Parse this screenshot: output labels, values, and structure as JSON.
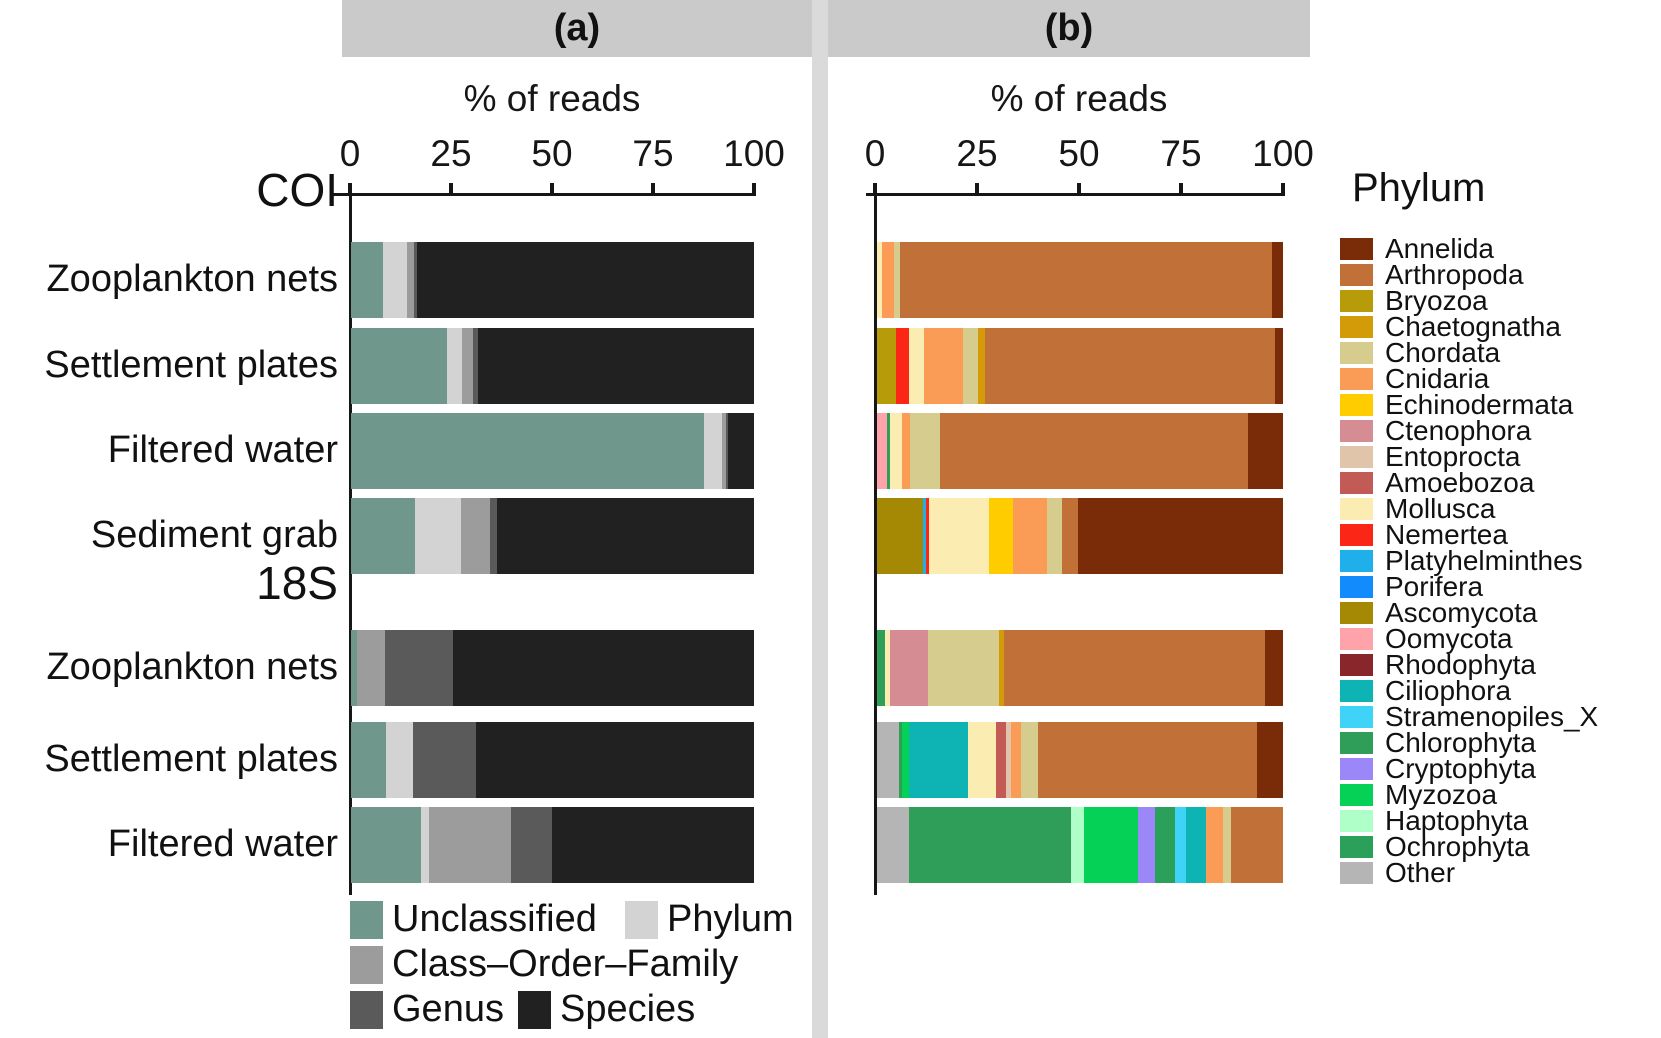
{
  "panels": {
    "a": {
      "header": "(a)",
      "axis_title": "% of reads",
      "ticks": [
        "0",
        "25",
        "50",
        "75",
        "100"
      ]
    },
    "b": {
      "header": "(b)",
      "axis_title": "% of reads",
      "ticks": [
        "0",
        "25",
        "50",
        "75",
        "100"
      ]
    }
  },
  "group_labels": {
    "coi": "COI",
    "s18": "18S"
  },
  "row_labels": [
    "Zooplankton nets",
    "Settlement plates",
    "Filtered water",
    "Sediment grab",
    "Zooplankton nets",
    "Settlement plates",
    "Filtered water"
  ],
  "legend_a": {
    "items": [
      {
        "label": "Unclassified",
        "key": "Unclassified"
      },
      {
        "label": "Phylum",
        "key": "Phylum"
      },
      {
        "label": "Class–Order–Family",
        "key": "Class-Order-Family"
      },
      {
        "label": "Genus",
        "key": "Genus"
      },
      {
        "label": "Species",
        "key": "Species"
      }
    ]
  },
  "legend_b": {
    "title": "Phylum",
    "items": [
      "Annelida",
      "Arthropoda",
      "Bryozoa",
      "Chaetognatha",
      "Chordata",
      "Cnidaria",
      "Echinodermata",
      "Ctenophora",
      "Entoprocta",
      "Amoebozoa",
      "Mollusca",
      "Nemertea",
      "Platyhelminthes",
      "Porifera",
      "Ascomycota",
      "Oomycota",
      "Rhodophyta",
      "Ciliophora",
      "Stramenopiles_X",
      "Chlorophyta",
      "Cryptophyta",
      "Myzozoa",
      "Haptophyta",
      "Ochrophyta",
      "Other"
    ]
  },
  "colors": {
    "Unclassified": "#6f978c",
    "Phylum": "#d3d3d3",
    "Class-Order-Family": "#9c9c9c",
    "Genus": "#5a5a5a",
    "Species": "#212121",
    "Annelida": "#7a2b08",
    "Arthropoda": "#c17038",
    "Bryozoa": "#b89b08",
    "Chaetognatha": "#d39b07",
    "Chordata": "#d6cc8d",
    "Cnidaria": "#fa9c55",
    "Echinodermata": "#ffcc00",
    "Ctenophora": "#d68c93",
    "Entoprocta": "#e0c5ab",
    "Amoebozoa": "#c25b55",
    "Mollusca": "#fbecb2",
    "Nemertea": "#fc2616",
    "Platyhelminthes": "#1fb0ec",
    "Porifera": "#128cfc",
    "Ascomycota": "#a58905",
    "Oomycota": "#ffa3ab",
    "Rhodophyta": "#88262b",
    "Ciliophora": "#0eb4b4",
    "Stramenopiles_X": "#3fd3f7",
    "Chlorophyta": "#2e9e58",
    "Cryptophyta": "#9b87f8",
    "Myzozoa": "#04d156",
    "Haptophyta": "#afffc8",
    "Ochrophyta": "#2aa05b",
    "Other": "#b5b5b5"
  },
  "chart_data": [
    {
      "id": "a",
      "type": "bar",
      "orientation": "horizontal",
      "stacked": true,
      "title": "% of reads",
      "xlabel": "% of reads",
      "xlim": [
        0,
        100
      ],
      "xticks": [
        0,
        25,
        50,
        75,
        100
      ],
      "legend_position": "bottom",
      "series_names": [
        "Unclassified",
        "Phylum",
        "Class-Order-Family",
        "Genus",
        "Species"
      ],
      "rows": [
        {
          "group": "COI",
          "category": "Zooplankton nets",
          "segments": [
            [
              "Unclassified",
              7.9
            ],
            [
              "Phylum",
              5.9
            ],
            [
              "Class-Order-Family",
              1.9
            ],
            [
              "Genus",
              0.8
            ],
            [
              "Species",
              83.5
            ]
          ]
        },
        {
          "group": "COI",
          "category": "Settlement plates",
          "segments": [
            [
              "Unclassified",
              23.8
            ],
            [
              "Phylum",
              3.7
            ],
            [
              "Class-Order-Family",
              2.9
            ],
            [
              "Genus",
              1.1
            ],
            [
              "Species",
              68.5
            ]
          ]
        },
        {
          "group": "COI",
          "category": "Filtered water",
          "segments": [
            [
              "Unclassified",
              87.5
            ],
            [
              "Phylum",
              4.5
            ],
            [
              "Class-Order-Family",
              1.0
            ],
            [
              "Genus",
              0.5
            ],
            [
              "Species",
              6.5
            ]
          ]
        },
        {
          "group": "COI",
          "category": "Sediment grab",
          "segments": [
            [
              "Unclassified",
              15.8
            ],
            [
              "Phylum",
              11.6
            ],
            [
              "Class-Order-Family",
              7.2
            ],
            [
              "Genus",
              1.7
            ],
            [
              "Species",
              63.7
            ]
          ]
        },
        {
          "group": "18S",
          "category": "Zooplankton nets",
          "segments": [
            [
              "Unclassified",
              1.5
            ],
            [
              "Class-Order-Family",
              6.9
            ],
            [
              "Genus",
              16.8
            ],
            [
              "Species",
              74.8
            ]
          ]
        },
        {
          "group": "18S",
          "category": "Settlement plates",
          "segments": [
            [
              "Unclassified",
              8.7
            ],
            [
              "Phylum",
              6.7
            ],
            [
              "Genus",
              15.6
            ],
            [
              "Species",
              69.0
            ]
          ]
        },
        {
          "group": "18S",
          "category": "Filtered water",
          "segments": [
            [
              "Unclassified",
              17.3
            ],
            [
              "Phylum",
              2.0
            ],
            [
              "Class-Order-Family",
              20.3
            ],
            [
              "Genus",
              10.4
            ],
            [
              "Species",
              50.0
            ]
          ]
        }
      ]
    },
    {
      "id": "b",
      "type": "bar",
      "orientation": "horizontal",
      "stacked": true,
      "title": "% of reads",
      "xlabel": "% of reads",
      "xlim": [
        0,
        100
      ],
      "xticks": [
        0,
        25,
        50,
        75,
        100
      ],
      "legend_position": "right",
      "legend_title": "Phylum",
      "rows": [
        {
          "group": "COI",
          "category": "Zooplankton nets",
          "segments": [
            [
              "Mollusca",
              1.2
            ],
            [
              "Cnidaria",
              3.0
            ],
            [
              "Chordata",
              1.5
            ],
            [
              "Arthropoda",
              91.6
            ],
            [
              "Annelida",
              2.7
            ]
          ]
        },
        {
          "group": "COI",
          "category": "Settlement plates",
          "segments": [
            [
              "Bryozoa",
              4.7
            ],
            [
              "Nemertea",
              3.3
            ],
            [
              "Mollusca",
              3.7
            ],
            [
              "Cnidaria",
              9.4
            ],
            [
              "Chordata",
              3.7
            ],
            [
              "Chaetognatha",
              1.7
            ],
            [
              "Arthropoda",
              71.5
            ],
            [
              "Annelida",
              2.0
            ]
          ]
        },
        {
          "group": "COI",
          "category": "Filtered water",
          "segments": [
            [
              "Oomycota",
              2.5
            ],
            [
              "Chlorophyta",
              0.7
            ],
            [
              "Mollusca",
              3.0
            ],
            [
              "Cnidaria",
              1.9
            ],
            [
              "Chordata",
              7.5
            ],
            [
              "Arthropoda",
              75.8
            ],
            [
              "Annelida",
              8.6
            ]
          ]
        },
        {
          "group": "COI",
          "category": "Sediment grab",
          "segments": [
            [
              "Ascomycota",
              11.4
            ],
            [
              "Platyhelminthes",
              0.6
            ],
            [
              "Nemertea",
              0.7
            ],
            [
              "Mollusca",
              15.0
            ],
            [
              "Echinodermata",
              5.7
            ],
            [
              "Cnidaria",
              8.6
            ],
            [
              "Chordata",
              3.7
            ],
            [
              "Arthropoda",
              3.8
            ],
            [
              "Annelida",
              50.5
            ]
          ]
        },
        {
          "group": "18S",
          "category": "Zooplankton nets",
          "segments": [
            [
              "Chlorophyta",
              2.0
            ],
            [
              "Mollusca",
              1.2
            ],
            [
              "Ctenophora",
              9.3
            ],
            [
              "Chordata",
              17.6
            ],
            [
              "Chaetognatha",
              1.2
            ],
            [
              "Arthropoda",
              64.3
            ],
            [
              "Annelida",
              4.4
            ]
          ]
        },
        {
          "group": "18S",
          "category": "Settlement plates",
          "segments": [
            [
              "Other",
              5.4
            ],
            [
              "Chlorophyta",
              0.8
            ],
            [
              "Myzozoa",
              1.6
            ],
            [
              "Ciliophora",
              14.7
            ],
            [
              "Mollusca",
              6.9
            ],
            [
              "Amoebozoa",
              2.4
            ],
            [
              "Entoprocta",
              1.2
            ],
            [
              "Cnidaria",
              2.4
            ],
            [
              "Chordata",
              4.2
            ],
            [
              "Arthropoda",
              54.0
            ],
            [
              "Annelida",
              6.4
            ]
          ]
        },
        {
          "group": "18S",
          "category": "Filtered water",
          "segments": [
            [
              "Other",
              7.8
            ],
            [
              "Chlorophyta",
              39.9
            ],
            [
              "Haptophyta",
              3.3
            ],
            [
              "Myzozoa",
              13.4
            ],
            [
              "Cryptophyta",
              4.1
            ],
            [
              "Ochrophyta",
              4.9
            ],
            [
              "Stramenopiles_X",
              2.8
            ],
            [
              "Ciliophora",
              4.9
            ],
            [
              "Cnidaria",
              4.1
            ],
            [
              "Chordata",
              2.0
            ],
            [
              "Arthropoda",
              12.8
            ]
          ]
        }
      ]
    }
  ]
}
